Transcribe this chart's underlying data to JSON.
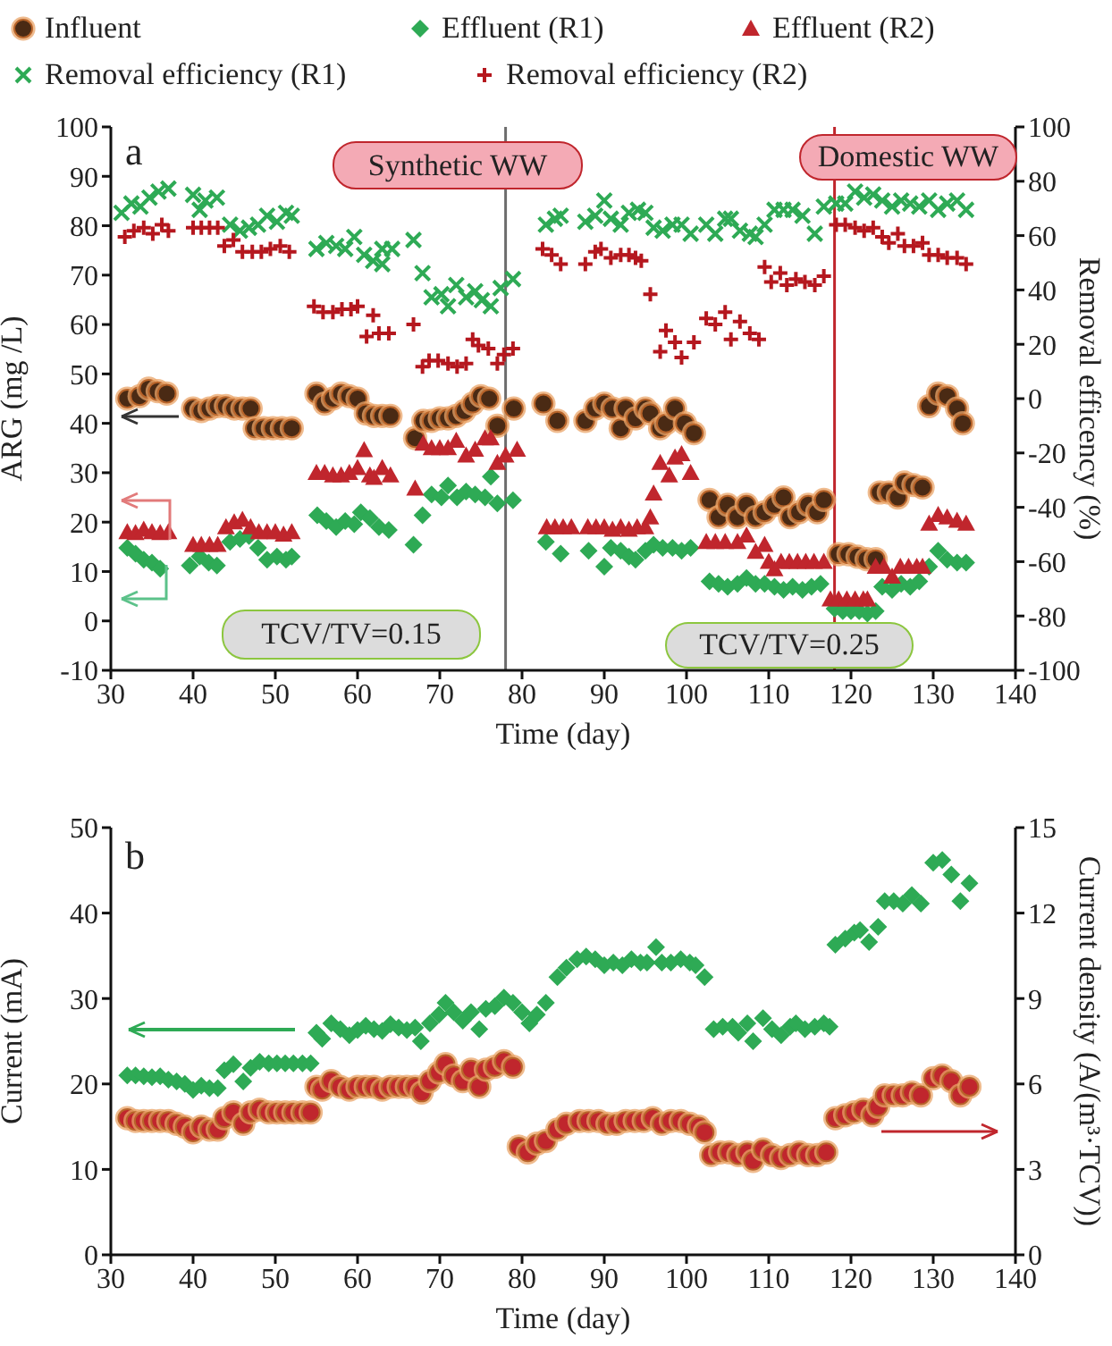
{
  "chart_data": [
    {
      "type": "scatter",
      "xlabel": "Time (day)",
      "ylabel": "ARG (mg /L)",
      "y2label": "Removal efficency (%)",
      "xlim": [
        30,
        140
      ],
      "xticks": [
        30,
        40,
        50,
        60,
        70,
        80,
        90,
        100,
        110,
        120,
        130,
        140
      ],
      "ylim": [
        -10,
        100
      ],
      "yticks": [
        -10,
        0,
        10,
        20,
        30,
        40,
        50,
        60,
        70,
        80,
        90,
        100
      ],
      "y2lim": [
        -100,
        100
      ],
      "y2ticks": [
        -100,
        -80,
        -60,
        -40,
        -20,
        0,
        20,
        40,
        60,
        80,
        100
      ],
      "legend": "top",
      "annotations": [
        "a",
        "Synthetic WW",
        "Domestic WW",
        "TCV/TV=0.15",
        "TCV/TV=0.25"
      ],
      "ref_lines": [
        {
          "axis": "x",
          "value": 78,
          "color": "#6d6d6d",
          "line_style": "solid"
        },
        {
          "axis": "x",
          "value": 118,
          "color": "#c0262d",
          "line_style": "solid"
        }
      ],
      "series": [
        {
          "name": "Influent",
          "color": "#4a2a14",
          "marker": "circle",
          "x": [
            32,
            33.5,
            34.6,
            35.7,
            36.8,
            40,
            41,
            42,
            43,
            44,
            45,
            46,
            47,
            47.5,
            48.6,
            49.7,
            50.8,
            52,
            55,
            56,
            57,
            58,
            59,
            60,
            61,
            62,
            63,
            64,
            67,
            68,
            69,
            70,
            71,
            72,
            73,
            74,
            75,
            76,
            77,
            79,
            82.6,
            84.3,
            87.7,
            88.9,
            90,
            91,
            92,
            92.6,
            93.8,
            95,
            95.6,
            96.8,
            97.5,
            98.6,
            99.8,
            100.9,
            102.8,
            103.9,
            105,
            106.2,
            107.3,
            108.4,
            109.5,
            110.7,
            111.8,
            112.6,
            113.7,
            114.8,
            115.9,
            116.7,
            118.5,
            119.7,
            120.8,
            121.9,
            123,
            123.5,
            124.6,
            125.7,
            126.5,
            127.6,
            128.7,
            129.5,
            130.6,
            131.7,
            132.9,
            133.6
          ],
          "values": [
            45,
            45.5,
            47,
            46.5,
            46,
            43,
            42.5,
            43,
            43.5,
            43.5,
            43,
            43,
            43,
            39,
            39,
            39,
            39,
            39,
            46,
            44,
            45,
            46,
            45.5,
            45,
            42,
            41.5,
            41.5,
            41.5,
            37,
            40.5,
            40.5,
            41,
            41,
            41.5,
            42.5,
            44,
            45.5,
            45,
            39.5,
            43,
            44,
            40.5,
            40.5,
            43,
            44,
            43,
            39,
            43,
            41,
            43,
            42,
            39,
            40,
            43,
            40,
            38,
            24.5,
            21,
            23.5,
            21,
            23.5,
            21,
            22,
            23.5,
            25,
            21,
            22,
            23.5,
            22,
            24.5,
            13.5,
            13.5,
            13,
            12.5,
            12.5,
            26,
            26,
            25,
            28,
            27.5,
            27,
            43.5,
            46,
            45.5,
            43,
            40
          ]
        },
        {
          "name": "Effluent (R1)",
          "color": "#2eaa55",
          "marker": "diamond",
          "x": [
            32,
            33,
            34,
            35,
            36,
            39.6,
            40.8,
            41.9,
            42.9,
            44.5,
            45.7,
            46.8,
            47.9,
            49,
            50.2,
            51.3,
            52,
            55.1,
            56.2,
            57.4,
            58.5,
            59.6,
            60.4,
            61.5,
            62.6,
            63.8,
            66.8,
            67.9,
            69,
            70.2,
            71,
            72.1,
            73.2,
            74.3,
            75.5,
            76.2,
            77,
            78.9,
            82.9,
            84.7,
            88.1,
            90,
            90.8,
            92,
            93,
            93.8,
            95,
            96,
            97.1,
            98.3,
            99.4,
            100.5,
            102.8,
            103.9,
            105,
            106.2,
            107.3,
            108.4,
            109.5,
            110.7,
            111.8,
            112.9,
            114.1,
            115.2,
            116.3,
            118,
            119,
            120,
            121,
            122,
            123,
            123.8,
            125,
            126.1,
            127.2,
            128.3,
            129.5,
            130.6,
            131.7,
            132.9,
            134
          ],
          "values": [
            14.8,
            13.6,
            12.4,
            11.8,
            10.6,
            11.2,
            13,
            11.8,
            11.2,
            16,
            16.6,
            17.2,
            14.8,
            12.4,
            13,
            12.4,
            13,
            21.4,
            20.2,
            19,
            20.2,
            19.6,
            22,
            20.8,
            19,
            18.4,
            15.4,
            21.4,
            25.6,
            25,
            27.4,
            25,
            26.2,
            25.6,
            25,
            29.2,
            23.8,
            24.4,
            16,
            13.6,
            14.2,
            11,
            14.8,
            14.2,
            13,
            12.4,
            14.2,
            15.4,
            14.8,
            14.8,
            14.2,
            14.8,
            8,
            7.5,
            6.9,
            7.5,
            8.7,
            7.5,
            7.5,
            6.9,
            6.3,
            6.9,
            6.3,
            6.9,
            7.5,
            2.5,
            2,
            2,
            2,
            1.5,
            2,
            6.9,
            6.3,
            7.5,
            6.9,
            8,
            11,
            14.2,
            12.4,
            11.8,
            11.8
          ]
        },
        {
          "name": "Effluent (R2)",
          "color": "#c0262d",
          "marker": "triangle",
          "x": [
            32,
            33,
            34,
            35,
            36,
            37,
            40,
            41,
            42,
            43,
            44,
            45,
            46,
            47,
            48,
            49,
            50,
            51,
            52,
            55,
            56,
            57,
            58,
            59,
            60,
            60.8,
            61.5,
            62,
            63,
            64,
            67,
            68,
            69,
            70,
            71,
            72,
            73.2,
            74.3,
            75.5,
            76.2,
            77,
            78,
            79.4,
            83,
            84,
            85,
            86,
            88,
            89,
            90,
            91,
            92,
            93,
            94,
            95,
            95.6,
            96,
            96.8,
            97.9,
            98.6,
            99.4,
            100.5,
            102.4,
            103.5,
            104.7,
            106.2,
            107.3,
            108.4,
            109.5,
            110,
            110.7,
            111.5,
            112.5,
            113.5,
            114.5,
            115.5,
            116.7,
            117.5,
            118.5,
            119.5,
            120.5,
            121.5,
            122,
            123,
            124,
            125,
            126,
            127,
            128,
            128.7,
            129.5,
            130.6,
            131.7,
            132.9,
            134
          ],
          "values": [
            18,
            17.8,
            18.5,
            18,
            17.8,
            18,
            15.4,
            15.4,
            15.4,
            15.4,
            19,
            20,
            20.5,
            19,
            18,
            18,
            18,
            17.5,
            18,
            30,
            30,
            29.5,
            29.5,
            30,
            31,
            34.6,
            29.5,
            29,
            31,
            29.5,
            26.8,
            35.9,
            35,
            35,
            35,
            36.5,
            33.5,
            34.7,
            37,
            37,
            32,
            33.5,
            34.7,
            19,
            19,
            19,
            19,
            19,
            19,
            19,
            18.5,
            19,
            18.5,
            19,
            19,
            21,
            25.8,
            32,
            29.5,
            33.1,
            33.8,
            30,
            16,
            16,
            16,
            16,
            17.3,
            14,
            15.4,
            12,
            10.5,
            12,
            12,
            12,
            12,
            12,
            12,
            4.4,
            4.4,
            4.4,
            4.4,
            4.4,
            4.4,
            11,
            11,
            9,
            11,
            11,
            11,
            11,
            19.7,
            21.5,
            21,
            20.3,
            19.7
          ]
        },
        {
          "name": "Removal efficiency (R1)",
          "color": "#2eaa55",
          "marker": "cross",
          "axis": "y2",
          "x": [
            31.3,
            32.5,
            33.6,
            34.7,
            35.8,
            37,
            40,
            40.8,
            41.5,
            42.9,
            44.5,
            45.7,
            46.8,
            47.9,
            49,
            50.2,
            51.3,
            52,
            55,
            56.2,
            57.4,
            58.5,
            59.6,
            60.8,
            61.9,
            63,
            63,
            64.2,
            66.8,
            67.9,
            69,
            70.2,
            71,
            72,
            73.2,
            74.3,
            75.1,
            76.2,
            77.4,
            78.9,
            82.9,
            84,
            84.7,
            87.7,
            88.9,
            90,
            90.8,
            92,
            93,
            94.1,
            95,
            96,
            97.1,
            98.3,
            99.4,
            100.5,
            102.4,
            103.5,
            104.7,
            105.4,
            106.5,
            107.7,
            108.4,
            109.5,
            110.7,
            111.8,
            112.9,
            114.1,
            115.6,
            116.7,
            118.2,
            119.3,
            120.5,
            121.6,
            122.7,
            123.8,
            125,
            126.1,
            127.2,
            128.3,
            129.5,
            130.6,
            131.7,
            132.9,
            134
          ],
          "values": [
            68.4,
            71.8,
            70.7,
            74,
            76.2,
            77.3,
            75,
            69.5,
            72.9,
            74,
            64,
            61.8,
            62.9,
            64,
            67.3,
            65.1,
            68.4,
            67.3,
            55.1,
            57.3,
            56.2,
            55.1,
            59.5,
            52.9,
            50.7,
            55.1,
            49.5,
            55.1,
            58.4,
            46.2,
            37.3,
            38.4,
            34,
            41.8,
            37.3,
            39.5,
            36.2,
            34,
            40.7,
            44,
            64,
            66.2,
            67.3,
            65.1,
            67.3,
            72.9,
            66.2,
            64,
            68.4,
            69.5,
            68.4,
            62.9,
            61.8,
            64,
            64,
            60.7,
            64,
            60.7,
            66.2,
            66.2,
            61.8,
            60.7,
            59.5,
            64,
            69.5,
            69.5,
            69.5,
            67.3,
            60.7,
            70.7,
            71.8,
            71.8,
            76.2,
            74,
            75.1,
            72.9,
            70.7,
            72.9,
            71.8,
            70.7,
            72.9,
            69.5,
            71.8,
            72.9,
            69.5
          ]
        },
        {
          "name": "Removal efficiency (R2)",
          "color": "#b5171e",
          "marker": "plus",
          "axis": "y2",
          "x": [
            31.7,
            32.8,
            34,
            35.1,
            36.2,
            37,
            40,
            41,
            42,
            43,
            43.8,
            44.9,
            46,
            47.2,
            48.3,
            49.4,
            50.6,
            51.7,
            54.7,
            55.8,
            57,
            58.1,
            59.2,
            60,
            61.1,
            61.9,
            62.6,
            63.8,
            66.8,
            67.9,
            68.7,
            69.8,
            71,
            72.1,
            73.2,
            74,
            74.7,
            75.9,
            77,
            77.8,
            78.9,
            82.5,
            83.6,
            84.7,
            87.7,
            88.9,
            89.6,
            90.8,
            92,
            93,
            93.8,
            94.5,
            95.6,
            96.8,
            97.5,
            98.6,
            99.4,
            100.9,
            102.4,
            103.5,
            104.7,
            105.4,
            106.5,
            107.7,
            108.8,
            109.5,
            110.3,
            111.4,
            112.2,
            113.3,
            114.4,
            115.6,
            116.7,
            118.2,
            119.3,
            120.5,
            121.6,
            122.7,
            123.8,
            124.6,
            125.7,
            126.5,
            127.6,
            128.7,
            129.5,
            130.6,
            131.7,
            132.9,
            134
          ],
          "values": [
            59.5,
            61.8,
            62.9,
            60.7,
            64,
            61.8,
            62.9,
            62.9,
            62.9,
            62.9,
            56.2,
            58.4,
            54,
            54,
            54,
            55.1,
            56.2,
            54,
            34,
            31.8,
            31.8,
            32.9,
            32.9,
            34,
            22.9,
            30.7,
            24,
            24,
            27.3,
            11.8,
            14,
            14,
            12.9,
            11.8,
            12.9,
            21.8,
            19.6,
            18.4,
            12.9,
            16.2,
            18.4,
            55.1,
            52.9,
            49.5,
            49.5,
            54,
            55.1,
            51.8,
            52.9,
            52.9,
            51.8,
            50.7,
            38.4,
            17.3,
            25.1,
            20.7,
            15.1,
            20.7,
            29.5,
            27.3,
            31.8,
            21.8,
            28.4,
            24,
            21.8,
            48.4,
            42.9,
            46.2,
            41.8,
            44,
            42.9,
            41.8,
            45.1,
            64,
            64,
            62.9,
            61.8,
            62.9,
            59.5,
            57.3,
            60.7,
            56.2,
            56.2,
            57.3,
            52.9,
            52.9,
            51.8,
            51.8,
            49.5
          ]
        }
      ]
    },
    {
      "type": "scatter",
      "xlabel": "Time (day)",
      "ylabel": "Current (mA)",
      "y2label": "Current density (A/(m³·TCV))",
      "xlim": [
        30,
        140
      ],
      "xticks": [
        30,
        40,
        50,
        60,
        70,
        80,
        90,
        100,
        110,
        120,
        130,
        140
      ],
      "ylim": [
        0,
        50
      ],
      "yticks": [
        0,
        10,
        20,
        30,
        40,
        50
      ],
      "y2lim": [
        0,
        15
      ],
      "y2ticks": [
        0,
        3,
        6,
        9,
        12,
        15
      ],
      "annotations": [
        "b"
      ],
      "series": [
        {
          "color": "#2eaa55",
          "marker": "diamond",
          "x": [
            32,
            33,
            34,
            35,
            36,
            37,
            38,
            39,
            40,
            41,
            42,
            43,
            43.8,
            44.9,
            46.1,
            47,
            48.1,
            49.2,
            50.2,
            51.2,
            52.2,
            53.3,
            54.3,
            55,
            55.7,
            56.8,
            57.9,
            59,
            60,
            61,
            62,
            63,
            64,
            65,
            66,
            67,
            67.7,
            68.8,
            69.9,
            70.7,
            71.7,
            72.8,
            73.8,
            74.8,
            75.6,
            76.7,
            77.8,
            78.9,
            80,
            80.9,
            81.8,
            82.9,
            84.3,
            85.4,
            86.7,
            87.8,
            88.9,
            90,
            91.1,
            92.2,
            93.3,
            94.4,
            95.2,
            96.3,
            97,
            98.1,
            99.3,
            100.4,
            101.1,
            102.2,
            103.3,
            104.4,
            105.6,
            106.3,
            107.4,
            108.1,
            109.3,
            110.4,
            111.5,
            112.6,
            113.3,
            114.4,
            115.6,
            116.7,
            117.4,
            118.1,
            119.3,
            120.4,
            121.1,
            122.2,
            123.3,
            124.1,
            125.2,
            126.3,
            127.4,
            128.5,
            130,
            131.1,
            132.2,
            133.3,
            134.4
          ],
          "values": [
            21,
            21,
            20.9,
            20.8,
            20.9,
            20.5,
            20.3,
            20,
            19.3,
            19.8,
            19.5,
            19.5,
            21.6,
            22.3,
            20.3,
            21.9,
            22.6,
            22.4,
            22.4,
            22.4,
            22.4,
            22.4,
            22.4,
            26,
            25.3,
            27.1,
            26.4,
            25.7,
            26.3,
            26.8,
            26.4,
            26.2,
            27,
            26.6,
            26.3,
            26.6,
            25,
            27.1,
            28.1,
            29.5,
            28.4,
            27.4,
            28.4,
            26.4,
            28.8,
            29.1,
            30.1,
            29.5,
            28.4,
            27.1,
            28.1,
            29.5,
            32.5,
            33.6,
            34.6,
            34.9,
            34.6,
            33.9,
            34.2,
            33.9,
            34.6,
            34.2,
            34.2,
            36,
            34.2,
            34.2,
            34.6,
            34.2,
            33.9,
            32.5,
            26.4,
            26.7,
            26.7,
            26,
            27.1,
            25,
            27.7,
            26.4,
            25.7,
            26.7,
            27.1,
            26.4,
            26.7,
            27.1,
            26.7,
            36.3,
            37,
            37.7,
            38,
            36.6,
            38.4,
            41.4,
            41.4,
            41.1,
            42.1,
            41.1,
            45.9,
            46.2,
            44.5,
            41.4,
            43.5
          ]
        },
        {
          "color": "#c0262d",
          "marker": "circle",
          "axis": "y2",
          "x": [
            32,
            33,
            34,
            35,
            36,
            37,
            38,
            39,
            40,
            41,
            42,
            43,
            43.8,
            44.9,
            46.1,
            47,
            48.1,
            49.2,
            50.2,
            51.2,
            52.2,
            53.3,
            54.3,
            55,
            55.7,
            56.8,
            57.9,
            59,
            60,
            61,
            62,
            63,
            64,
            65,
            66,
            67,
            67.8,
            68.8,
            69.9,
            70.7,
            71.7,
            72.8,
            73.8,
            74.8,
            75.6,
            76.7,
            77.8,
            78.9,
            79.6,
            80.7,
            81.8,
            82.9,
            84.3,
            85.4,
            87,
            88.1,
            89.3,
            90.4,
            91.5,
            92.6,
            93.7,
            94.8,
            95.9,
            97,
            98.1,
            99.3,
            100.4,
            101.5,
            102.2,
            103,
            104.1,
            105.2,
            106.3,
            107.4,
            108.1,
            109.3,
            110.4,
            111.5,
            112.6,
            113.7,
            114.8,
            115.9,
            117,
            118.1,
            119.3,
            120.4,
            121.5,
            122.6,
            123.3,
            124.1,
            125.2,
            126.3,
            127.4,
            128.5,
            130,
            131.1,
            132.2,
            133.3,
            134.4
          ],
          "values": [
            4.8,
            4.7,
            4.7,
            4.7,
            4.7,
            4.7,
            4.6,
            4.5,
            4.3,
            4.5,
            4.4,
            4.4,
            4.8,
            5,
            4.6,
            5,
            5.1,
            5,
            5,
            5,
            5,
            5,
            5,
            5.9,
            5.8,
            6.1,
            5.9,
            5.8,
            5.9,
            5.9,
            5.9,
            5.8,
            5.9,
            5.9,
            5.9,
            5.9,
            5.7,
            6.1,
            6.4,
            6.7,
            6.3,
            6.1,
            6.5,
            5.9,
            6.5,
            6.6,
            6.8,
            6.6,
            3.8,
            3.6,
            3.9,
            4,
            4.4,
            4.6,
            4.7,
            4.7,
            4.7,
            4.6,
            4.6,
            4.7,
            4.7,
            4.7,
            4.8,
            4.6,
            4.7,
            4.7,
            4.6,
            4.5,
            4.3,
            3.5,
            3.6,
            3.6,
            3.5,
            3.6,
            3.3,
            3.7,
            3.5,
            3.4,
            3.5,
            3.6,
            3.5,
            3.5,
            3.6,
            4.8,
            4.9,
            5,
            5.1,
            4.9,
            5.2,
            5.6,
            5.6,
            5.6,
            5.7,
            5.6,
            6.2,
            6.3,
            6.1,
            5.6,
            5.9
          ]
        }
      ]
    }
  ]
}
